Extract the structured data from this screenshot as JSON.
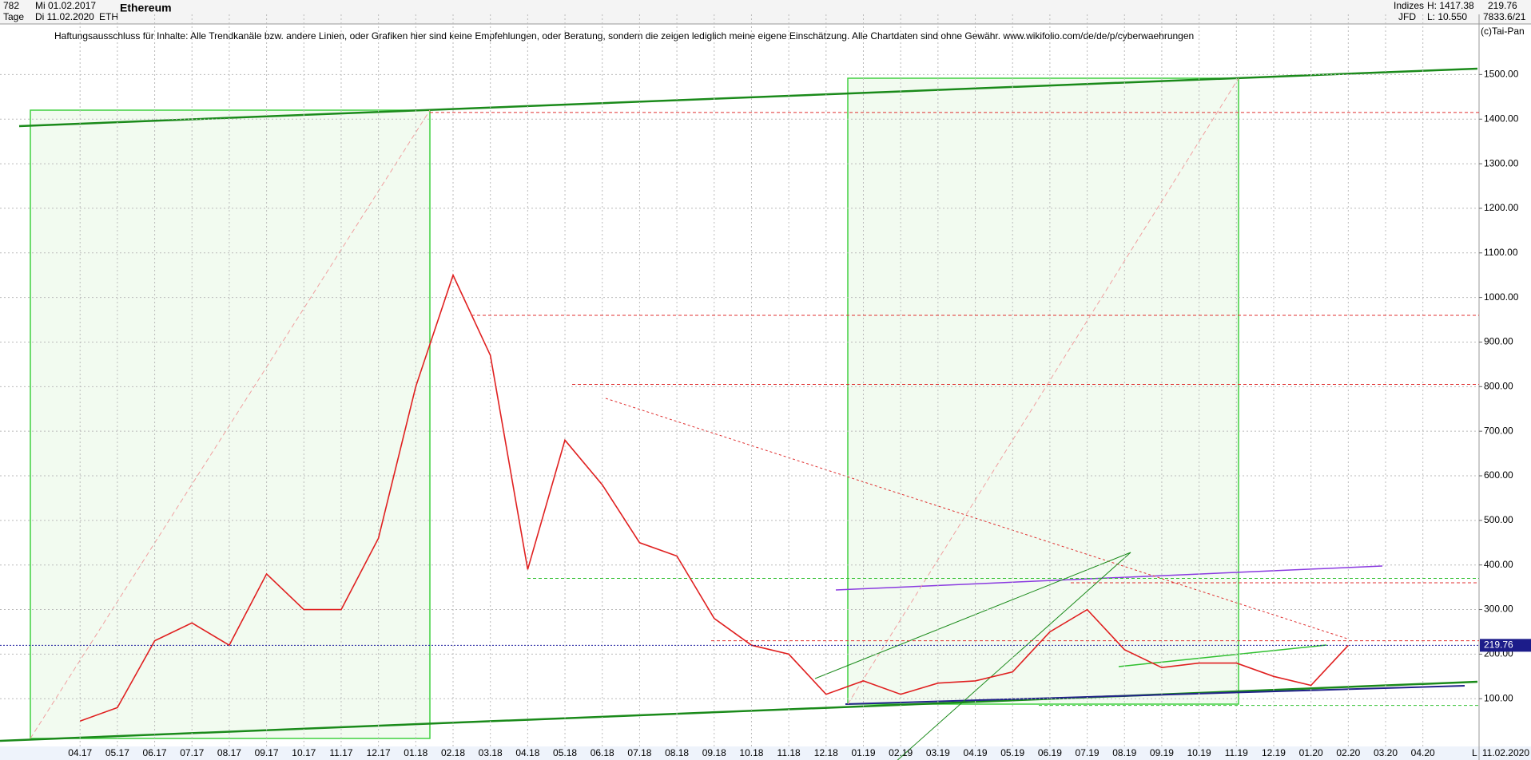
{
  "header": {
    "count": "782",
    "start_date": "Mi 01.02.2017",
    "period": "Tage",
    "end_date": "Di 11.02.2020",
    "name": "Ethereum",
    "symbol": "ETH",
    "group": "Indizes",
    "source": "JFD",
    "high": "H: 1417.38",
    "low": "L: 10.550",
    "last": "219.76",
    "info": "7833.6/21",
    "copyright": "(c)Tai-Pan"
  },
  "chart_data": {
    "type": "line",
    "subtitle": "Haftungsausschluss für Inhalte: Alle Trendkanäle bzw. andere Linien, oder Grafiken hier sind keine Empfehlungen, oder Beratung, sondern die zeigen lediglich meine eigene Einschätzung. Alle Chartdaten sind ohne Gewähr.  www.wikifolio.com/de/de/p/cyberwaehrungen",
    "categories": [
      "04.17",
      "05.17",
      "06.17",
      "07.17",
      "08.17",
      "09.17",
      "10.17",
      "11.17",
      "12.17",
      "01.18",
      "02.18",
      "03.18",
      "04.18",
      "05.18",
      "06.18",
      "07.18",
      "08.18",
      "09.18",
      "10.18",
      "11.18",
      "12.18",
      "01.19",
      "02.19",
      "03.19",
      "04.19",
      "05.19",
      "06.19",
      "07.19",
      "08.19",
      "09.19",
      "10.19",
      "11.19",
      "12.19",
      "01.20",
      "02.20",
      "03.20",
      "04.20"
    ],
    "series": [
      {
        "name": "Ethereum",
        "color": "#e02020",
        "values": [
          50,
          80,
          230,
          270,
          220,
          380,
          300,
          300,
          460,
          800,
          1050,
          870,
          390,
          680,
          580,
          450,
          420,
          280,
          220,
          200,
          110,
          140,
          110,
          135,
          140,
          160,
          250,
          300,
          210,
          170,
          180,
          180,
          150,
          130,
          219.76,
          null,
          null
        ]
      }
    ],
    "last_price": 219.76,
    "end_label": "11.02.2020",
    "corner_label": "L",
    "hlines": [
      {
        "value": 1415,
        "color": "#e03030"
      },
      {
        "value": 960,
        "color": "#e03030"
      },
      {
        "value": 805,
        "color": "#e03030"
      },
      {
        "value": 360,
        "color": "#e03030"
      },
      {
        "value": 370,
        "color": "#30c030"
      },
      {
        "value": 230,
        "color": "#e03030"
      },
      {
        "value": 85,
        "color": "#30c030"
      }
    ],
    "ylim": [
      -7,
      1635
    ],
    "yticks": [
      {
        "value": 100,
        "label": "100.00"
      },
      {
        "value": 200,
        "label": "200.00"
      },
      {
        "value": 300,
        "label": "300.00"
      },
      {
        "value": 400,
        "label": "400.00"
      },
      {
        "value": 500,
        "label": "500.00"
      },
      {
        "value": 600,
        "label": "600.00"
      },
      {
        "value": 700,
        "label": "700.00"
      },
      {
        "value": 800,
        "label": "800.00"
      },
      {
        "value": 900,
        "label": "900.00"
      },
      {
        "value": 1000,
        "label": "1000.00"
      },
      {
        "value": 1100,
        "label": "1100.00"
      },
      {
        "value": 1200,
        "label": "1200.00"
      },
      {
        "value": 1300,
        "label": "1300.00"
      },
      {
        "value": 1400,
        "label": "1400.00"
      },
      {
        "value": 1500,
        "label": "1500.00"
      }
    ],
    "grid": true
  }
}
